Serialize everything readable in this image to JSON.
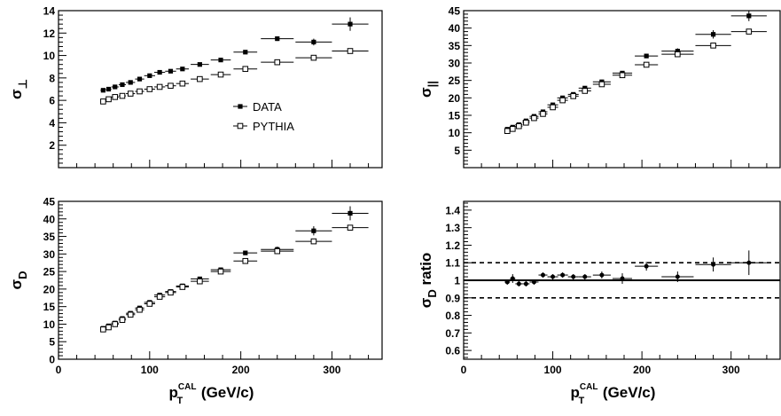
{
  "chart_data": [
    {
      "type": "scatter",
      "ylabel": {
        "main": "σ",
        "sub": "⊥",
        "suffix": ""
      },
      "xlim": [
        0,
        355
      ],
      "ylim": [
        0,
        14
      ],
      "yticks": [
        2,
        4,
        6,
        8,
        10,
        12,
        14
      ],
      "xticks": [
        0,
        100,
        200,
        300
      ],
      "show_x_tick_labels": false,
      "legend": {
        "placement": "center",
        "entries": [
          "DATA",
          "PYTHIA"
        ]
      },
      "series": [
        {
          "name": "DATA",
          "marker": "filled-square",
          "x": [
            49,
            55,
            62,
            70,
            79,
            89,
            100,
            111,
            123,
            136,
            155,
            178,
            205,
            240,
            280,
            320
          ],
          "xerr": [
            3,
            3,
            4,
            4,
            5,
            5,
            6,
            6,
            6,
            7,
            10,
            11,
            13,
            18,
            20,
            20
          ],
          "y": [
            6.9,
            7.0,
            7.2,
            7.4,
            7.6,
            7.9,
            8.2,
            8.5,
            8.6,
            8.8,
            9.2,
            9.6,
            10.3,
            11.5,
            11.2,
            12.8
          ],
          "yerr": [
            0.1,
            0.1,
            0.1,
            0.1,
            0.1,
            0.1,
            0.1,
            0.1,
            0.1,
            0.1,
            0.1,
            0.15,
            0.15,
            0.2,
            0.3,
            0.6
          ]
        },
        {
          "name": "PYTHIA",
          "marker": "open-square",
          "x": [
            49,
            55,
            62,
            70,
            79,
            89,
            100,
            111,
            123,
            136,
            155,
            178,
            205,
            240,
            280,
            320
          ],
          "xerr": [
            3,
            3,
            4,
            4,
            5,
            5,
            6,
            6,
            6,
            7,
            10,
            11,
            13,
            18,
            20,
            20
          ],
          "y": [
            5.9,
            6.1,
            6.3,
            6.4,
            6.6,
            6.8,
            7.0,
            7.2,
            7.3,
            7.5,
            7.9,
            8.3,
            8.8,
            9.4,
            9.8,
            10.4
          ],
          "yerr": [
            0.05,
            0.05,
            0.05,
            0.05,
            0.05,
            0.05,
            0.05,
            0.05,
            0.05,
            0.05,
            0.05,
            0.05,
            0.05,
            0.1,
            0.1,
            0.1
          ]
        }
      ]
    },
    {
      "type": "scatter",
      "ylabel": {
        "main": "σ",
        "sub": "||",
        "suffix": ""
      },
      "xlim": [
        0,
        355
      ],
      "ylim": [
        0,
        45
      ],
      "yticks": [
        5,
        10,
        15,
        20,
        25,
        30,
        35,
        40,
        45
      ],
      "xticks": [
        0,
        100,
        200,
        300
      ],
      "show_x_tick_labels": false,
      "series": [
        {
          "name": "DATA",
          "marker": "filled-square",
          "x": [
            49,
            55,
            62,
            70,
            79,
            89,
            100,
            111,
            123,
            136,
            155,
            178,
            205,
            240,
            280,
            320
          ],
          "xerr": [
            3,
            3,
            4,
            4,
            5,
            5,
            6,
            6,
            6,
            7,
            10,
            11,
            13,
            18,
            20,
            20
          ],
          "y": [
            11.0,
            11.6,
            12.3,
            13.4,
            14.7,
            16.0,
            18.0,
            20.0,
            21.0,
            22.8,
            24.6,
            27.1,
            32.0,
            33.4,
            38.2,
            43.5
          ],
          "yerr": [
            0.2,
            0.2,
            0.2,
            0.2,
            0.2,
            0.3,
            0.3,
            0.3,
            0.3,
            0.3,
            0.4,
            0.5,
            0.6,
            0.8,
            1.2,
            1.5
          ]
        },
        {
          "name": "PYTHIA",
          "marker": "open-square",
          "x": [
            49,
            55,
            62,
            70,
            79,
            89,
            100,
            111,
            123,
            136,
            155,
            178,
            205,
            240,
            280,
            320
          ],
          "xerr": [
            3,
            3,
            4,
            4,
            5,
            5,
            6,
            6,
            6,
            7,
            10,
            11,
            13,
            18,
            20,
            20
          ],
          "y": [
            10.5,
            11.1,
            11.9,
            12.9,
            14.2,
            15.4,
            17.3,
            19.3,
            20.5,
            22.0,
            23.9,
            26.5,
            29.5,
            32.5,
            35.0,
            39.0
          ],
          "yerr": [
            0.1,
            0.1,
            0.1,
            0.1,
            0.1,
            0.1,
            0.1,
            0.1,
            0.1,
            0.1,
            0.1,
            0.1,
            0.1,
            0.2,
            0.2,
            0.2
          ]
        }
      ]
    },
    {
      "type": "scatter",
      "ylabel": {
        "main": "σ",
        "sub": "D",
        "suffix": ""
      },
      "xlabel": "(GeV/c)",
      "xlabel_symbol": {
        "main": "p",
        "sub": "T",
        "sup": "CAL"
      },
      "xlim": [
        0,
        355
      ],
      "ylim": [
        0,
        45
      ],
      "yticks": [
        0,
        5,
        10,
        15,
        20,
        25,
        30,
        35,
        40,
        45
      ],
      "xticks": [
        0,
        100,
        200,
        300
      ],
      "show_x_tick_labels": true,
      "series": [
        {
          "name": "DATA",
          "marker": "filled-square",
          "x": [
            49,
            55,
            62,
            70,
            79,
            89,
            100,
            111,
            123,
            136,
            155,
            178,
            205,
            240,
            280,
            320
          ],
          "xerr": [
            3,
            3,
            4,
            4,
            5,
            5,
            6,
            6,
            6,
            7,
            10,
            11,
            13,
            18,
            20,
            20
          ],
          "y": [
            8.8,
            9.5,
            10.3,
            11.6,
            13.1,
            14.6,
            16.2,
            18.3,
            19.3,
            20.9,
            22.9,
            25.5,
            30.3,
            31.3,
            36.6,
            41.6
          ],
          "yerr": [
            0.2,
            0.2,
            0.2,
            0.2,
            0.2,
            0.2,
            0.3,
            0.3,
            0.3,
            0.3,
            0.4,
            0.5,
            0.6,
            0.8,
            1.3,
            2.0
          ]
        },
        {
          "name": "PYTHIA",
          "marker": "open-square",
          "x": [
            49,
            55,
            62,
            70,
            79,
            89,
            100,
            111,
            123,
            136,
            155,
            178,
            205,
            240,
            280,
            320
          ],
          "xerr": [
            3,
            3,
            4,
            4,
            5,
            5,
            6,
            6,
            6,
            7,
            10,
            11,
            13,
            18,
            20,
            20
          ],
          "y": [
            8.5,
            9.1,
            10.0,
            11.2,
            12.7,
            14.1,
            15.8,
            17.8,
            19.0,
            20.6,
            22.2,
            25.0,
            28.0,
            30.8,
            33.6,
            37.5
          ],
          "yerr": [
            0.1,
            0.1,
            0.1,
            0.1,
            0.1,
            0.1,
            0.1,
            0.1,
            0.1,
            0.1,
            0.1,
            0.1,
            0.1,
            0.2,
            0.2,
            0.2
          ]
        }
      ]
    },
    {
      "type": "scatter",
      "ylabel": {
        "main": "σ",
        "sub": "D",
        "suffix": " ratio"
      },
      "xlabel": "(GeV/c)",
      "xlabel_symbol": {
        "main": "p",
        "sub": "T",
        "sup": "CAL"
      },
      "xlim": [
        0,
        355
      ],
      "ylim": [
        0.55,
        1.45
      ],
      "yticks": [
        0.6,
        0.7,
        0.8,
        0.9,
        1,
        1.1,
        1.2,
        1.3,
        1.4
      ],
      "ytick_labels": [
        "0.6",
        "0.7",
        "0.8",
        "0.9",
        "1",
        "1.1",
        "1.2",
        "1.3",
        "1.4"
      ],
      "xticks": [
        0,
        100,
        200,
        300
      ],
      "show_x_tick_labels": true,
      "reference_lines": [
        {
          "y": 1.0,
          "style": "solid"
        },
        {
          "y": 1.1,
          "style": "dashed"
        },
        {
          "y": 0.9,
          "style": "dashed"
        }
      ],
      "series": [
        {
          "name": "ratio",
          "marker": "filled-circle",
          "x": [
            49,
            55,
            62,
            70,
            79,
            89,
            100,
            111,
            123,
            136,
            155,
            178,
            205,
            240,
            280,
            320
          ],
          "xerr": [
            3,
            3,
            4,
            4,
            5,
            5,
            6,
            6,
            6,
            7,
            10,
            11,
            13,
            18,
            20,
            20
          ],
          "y": [
            0.99,
            1.01,
            0.98,
            0.98,
            0.99,
            1.03,
            1.02,
            1.03,
            1.02,
            1.02,
            1.03,
            1.01,
            1.08,
            1.02,
            1.09,
            1.1
          ],
          "yerr": [
            0.015,
            0.025,
            0.015,
            0.015,
            0.015,
            0.015,
            0.015,
            0.015,
            0.015,
            0.015,
            0.02,
            0.03,
            0.025,
            0.03,
            0.04,
            0.07
          ]
        }
      ]
    }
  ]
}
